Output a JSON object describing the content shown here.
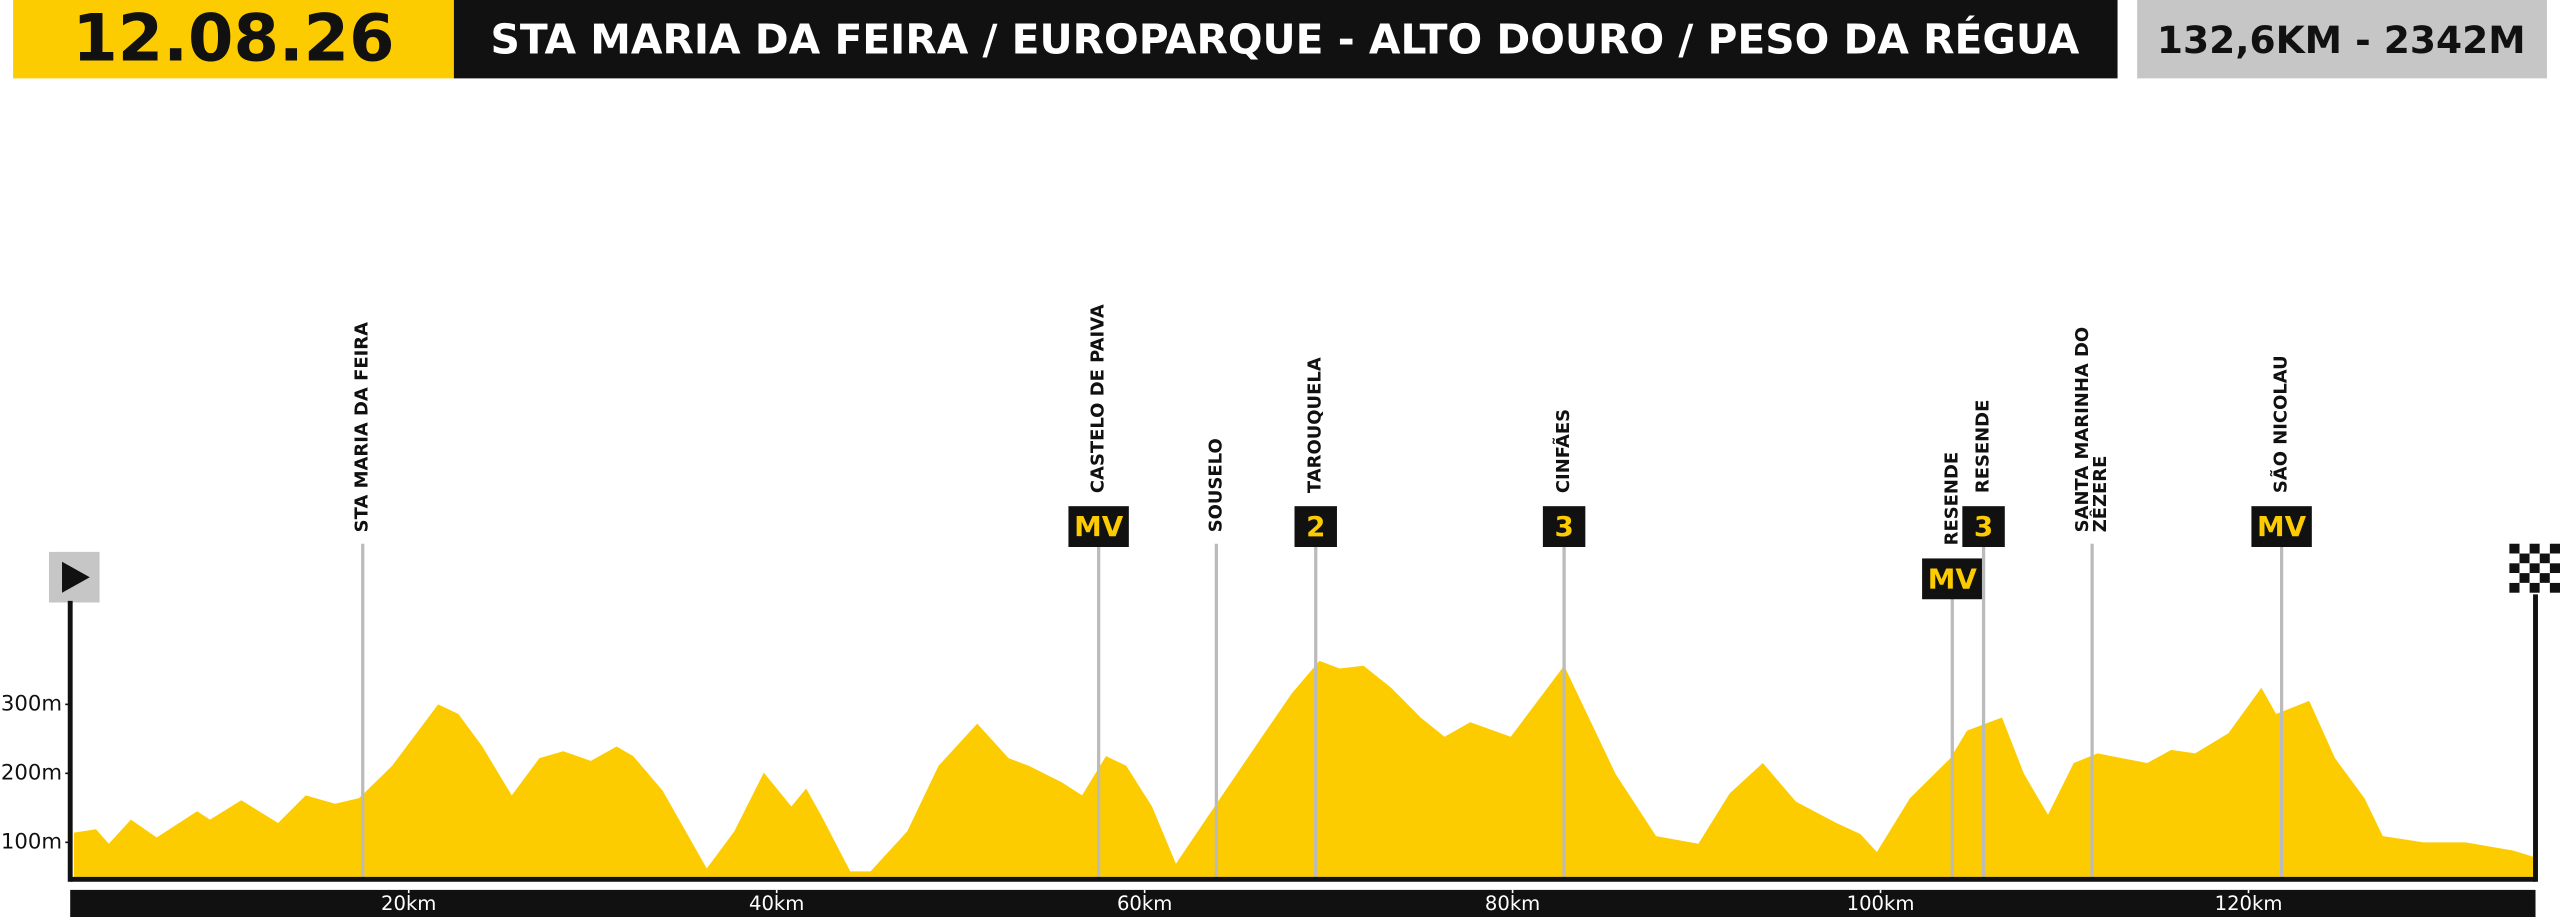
{
  "header": {
    "date": "12.08.26",
    "route": "STA MARIA DA FEIRA / EUROPARQUE - ALTO DOURO / PESO DA RÉGUA",
    "stats": "132,6KM - 2342M"
  },
  "chart_data": {
    "type": "area",
    "color": "#fccc00",
    "x": [
      1.8,
      3.0,
      3.7,
      4.9,
      6.3,
      8.5,
      9.2,
      10.9,
      12.9,
      14.4,
      16.0,
      17.3,
      19.1,
      21.6,
      22.7,
      24.0,
      25.6,
      27.1,
      28.4,
      29.9,
      31.3,
      32.2,
      33.8,
      36.2,
      37.7,
      39.3,
      40.8,
      41.6,
      42.4,
      44.0,
      45.1,
      47.1,
      48.8,
      50.9,
      52.6,
      53.7,
      55.5,
      56.6,
      57.9,
      59.0,
      60.4,
      61.7,
      63.5,
      66.2,
      68.0,
      69.5,
      70.6,
      71.9,
      73.4,
      75.0,
      76.3,
      77.7,
      79.9,
      82.8,
      85.6,
      87.8,
      90.1,
      91.8,
      93.6,
      95.4,
      97.6,
      98.9,
      99.8,
      101.6,
      103.8,
      104.7,
      106.6,
      107.8,
      109.1,
      110.5,
      111.8,
      113.1,
      114.5,
      115.8,
      117.1,
      118.9,
      120.7,
      121.5,
      123.3,
      124.7,
      126.3,
      127.3,
      129.5,
      131.8,
      134.4,
      135.5
    ],
    "values": [
      114,
      119,
      98,
      133,
      107,
      145,
      133,
      161,
      128,
      168,
      156,
      164,
      211,
      300,
      286,
      239,
      168,
      222,
      232,
      218,
      239,
      225,
      175,
      62,
      116,
      201,
      152,
      178,
      140,
      58,
      58,
      116,
      211,
      272,
      222,
      211,
      187,
      168,
      225,
      211,
      152,
      69,
      140,
      246,
      316,
      363,
      352,
      356,
      324,
      281,
      253,
      274,
      253,
      356,
      199,
      109,
      98,
      171,
      215,
      159,
      128,
      112,
      86,
      164,
      222,
      262,
      281,
      199,
      140,
      215,
      229,
      222,
      215,
      234,
      229,
      258,
      324,
      286,
      305,
      222,
      164,
      109,
      100,
      100,
      88,
      79
    ],
    "xlim": [
      1.6,
      135.6
    ],
    "ylim": [
      50,
      450
    ],
    "xticks": [
      {
        "value": 20,
        "label": "20km"
      },
      {
        "value": 40,
        "label": "40km"
      },
      {
        "value": 60,
        "label": "60km"
      },
      {
        "value": 80,
        "label": "80km"
      },
      {
        "value": 100,
        "label": "100km"
      },
      {
        "value": 120,
        "label": "120km"
      }
    ],
    "yticks": [
      {
        "value": 100,
        "label": "100m"
      },
      {
        "value": 200,
        "label": "200m"
      },
      {
        "value": 300,
        "label": "300m"
      }
    ],
    "markers": [
      {
        "km": 17.5,
        "label": [
          "STA MARIA DA FEIRA"
        ]
      },
      {
        "km": 57.5,
        "label": [
          "CASTELO DE PAIVA"
        ],
        "badge": "MV"
      },
      {
        "km": 63.9,
        "label": [
          "SOUSELO"
        ]
      },
      {
        "km": 69.3,
        "label": [
          "TAROUQUELA"
        ],
        "badge": "2"
      },
      {
        "km": 82.8,
        "label": [
          "CINFÃES"
        ],
        "badge": "3"
      },
      {
        "km": 103.9,
        "label": [
          "RESENDE"
        ],
        "badge": "MV"
      },
      {
        "km": 105.6,
        "label": [
          "RESENDE"
        ],
        "badge": "3"
      },
      {
        "km": 111.5,
        "label": [
          "SANTA MARINHA DO",
          "ZÊZERE"
        ]
      },
      {
        "km": 121.8,
        "label": [
          "SÃO NICOLAU"
        ],
        "badge": "MV"
      }
    ]
  }
}
